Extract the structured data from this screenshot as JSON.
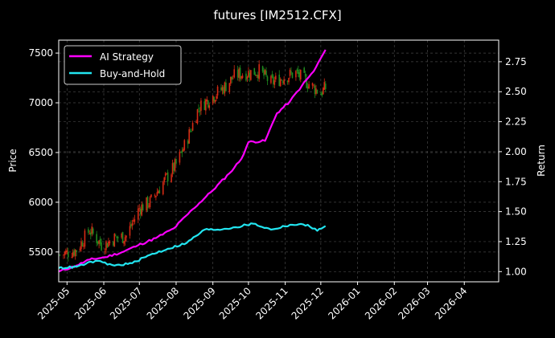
{
  "chart_data": {
    "type": "line",
    "title": "futures [IM2512.CFX]",
    "ylabel_left": "Price",
    "ylabel_right": "Return",
    "xlim": [
      "2025-04-24",
      "2026-04-30"
    ],
    "ylim_left": [
      5200,
      7630
    ],
    "ylim_right": [
      0.915,
      2.93
    ],
    "x_ticks": [
      "2025-05",
      "2025-06",
      "2025-07",
      "2025-08",
      "2025-09",
      "2025-10",
      "2025-11",
      "2025-12",
      "2026-01",
      "2026-02",
      "2026-03",
      "2026-04"
    ],
    "y_ticks_left": [
      5500,
      6000,
      6500,
      7000,
      7500
    ],
    "y_ticks_right": [
      1.0,
      1.25,
      1.5,
      1.75,
      2.0,
      2.25,
      2.5,
      2.75
    ],
    "grid": true,
    "legend_position": "top-left",
    "colors": {
      "ai_strategy": "#ff00ff",
      "buy_and_hold": "#22e5f0",
      "candle_up": "#d62a14",
      "candle_down": "#1f8a1f",
      "grid": "#444444"
    },
    "series": [
      {
        "name": "AI Strategy",
        "axis": "right",
        "points": [
          [
            "2025-04-24",
            1.0
          ],
          [
            "2025-05-09",
            1.05
          ],
          [
            "2025-05-20",
            1.1
          ],
          [
            "2025-06-02",
            1.12
          ],
          [
            "2025-06-16",
            1.16
          ],
          [
            "2025-06-30",
            1.22
          ],
          [
            "2025-07-15",
            1.28
          ],
          [
            "2025-07-30",
            1.36
          ],
          [
            "2025-08-15",
            1.52
          ],
          [
            "2025-08-30",
            1.66
          ],
          [
            "2025-09-15",
            1.82
          ],
          [
            "2025-09-25",
            1.94
          ],
          [
            "2025-10-01",
            2.08
          ],
          [
            "2025-10-15",
            2.09
          ],
          [
            "2025-10-25",
            2.32
          ],
          [
            "2025-11-05",
            2.42
          ],
          [
            "2025-11-15",
            2.55
          ],
          [
            "2025-11-25",
            2.67
          ],
          [
            "2025-12-05",
            2.85
          ]
        ]
      },
      {
        "name": "Buy-and-Hold",
        "axis": "right",
        "points": [
          [
            "2025-04-24",
            1.03
          ],
          [
            "2025-05-09",
            1.04
          ],
          [
            "2025-05-25",
            1.09
          ],
          [
            "2025-06-10",
            1.05
          ],
          [
            "2025-06-25",
            1.07
          ],
          [
            "2025-07-10",
            1.14
          ],
          [
            "2025-07-25",
            1.19
          ],
          [
            "2025-08-10",
            1.24
          ],
          [
            "2025-08-25",
            1.35
          ],
          [
            "2025-09-05",
            1.35
          ],
          [
            "2025-09-20",
            1.37
          ],
          [
            "2025-10-05",
            1.4
          ],
          [
            "2025-10-20",
            1.35
          ],
          [
            "2025-11-05",
            1.39
          ],
          [
            "2025-11-20",
            1.39
          ],
          [
            "2025-11-28",
            1.34
          ],
          [
            "2025-12-05",
            1.38
          ]
        ]
      },
      {
        "name": "IM2512.CFX price",
        "axis": "left",
        "type": "candlestick",
        "close_points": [
          [
            "2025-04-25",
            5470
          ],
          [
            "2025-05-09",
            5520
          ],
          [
            "2025-05-20",
            5720
          ],
          [
            "2025-05-31",
            5560
          ],
          [
            "2025-06-10",
            5640
          ],
          [
            "2025-06-20",
            5660
          ],
          [
            "2025-07-01",
            5940
          ],
          [
            "2025-07-10",
            6000
          ],
          [
            "2025-07-20",
            6180
          ],
          [
            "2025-08-01",
            6380
          ],
          [
            "2025-08-10",
            6620
          ],
          [
            "2025-08-20",
            6950
          ],
          [
            "2025-08-30",
            7050
          ],
          [
            "2025-09-10",
            7150
          ],
          [
            "2025-09-20",
            7280
          ],
          [
            "2025-09-30",
            7300
          ],
          [
            "2025-10-10",
            7320
          ],
          [
            "2025-10-20",
            7200
          ],
          [
            "2025-10-31",
            7260
          ],
          [
            "2025-11-10",
            7300
          ],
          [
            "2025-11-20",
            7200
          ],
          [
            "2025-12-01",
            7100
          ],
          [
            "2025-12-05",
            7150
          ]
        ]
      }
    ]
  }
}
